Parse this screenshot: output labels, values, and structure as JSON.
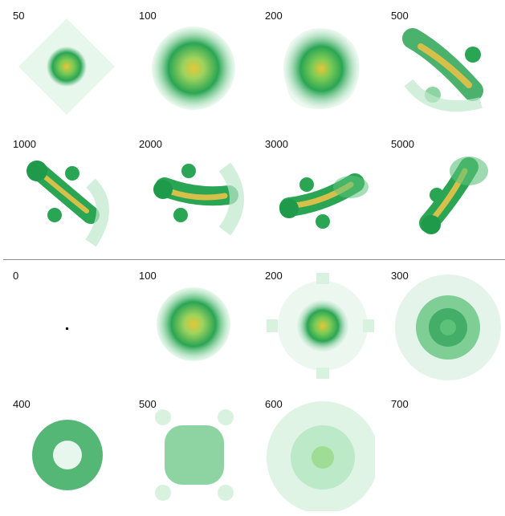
{
  "top_panel": {
    "steps": [
      "50",
      "100",
      "200",
      "500",
      "1000",
      "2000",
      "3000",
      "5000"
    ]
  },
  "bottom_panel": {
    "steps": [
      "0",
      "100",
      "200",
      "300",
      "400",
      "500",
      "600",
      "700"
    ]
  },
  "colors": {
    "green_light": "#d9f2e0",
    "green_mid": "#5cc27a",
    "green_dark": "#1e9a4a",
    "yellow": "#e6c637",
    "red": "#d9573b",
    "divider": "#8a8a8a"
  }
}
